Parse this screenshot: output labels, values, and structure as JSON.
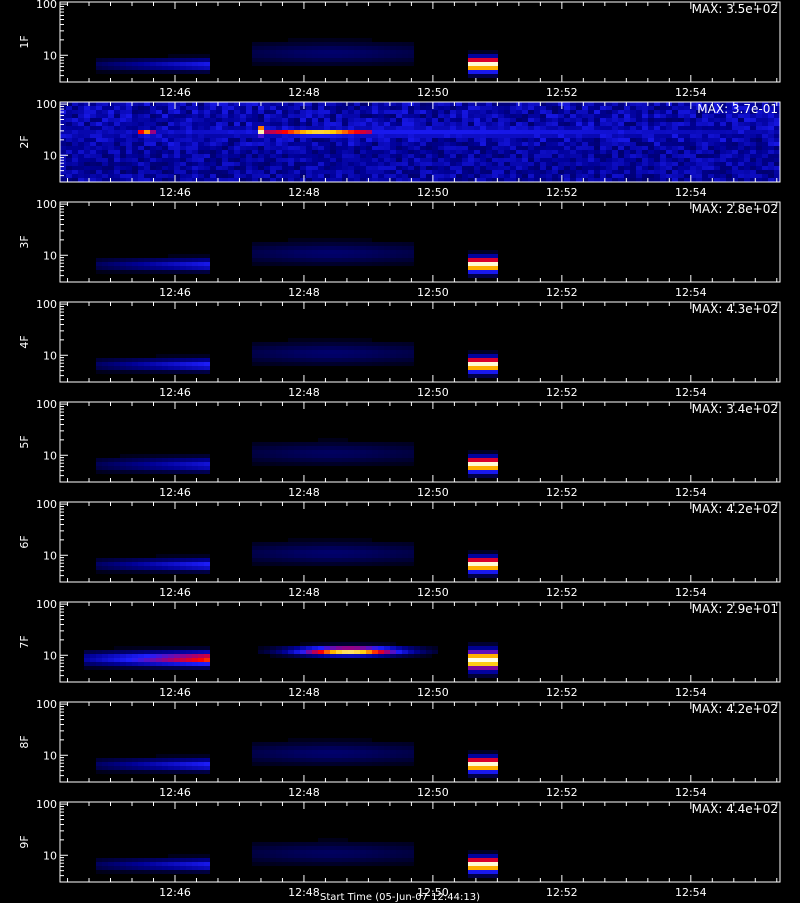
{
  "figure": {
    "x_axis_title": "Start Time (05-Jun-07 12:44:13)"
  },
  "chart_data": [
    {
      "type": "heatmap",
      "channel_label": "1F",
      "max_label": "MAX: 3.5e+02",
      "x_ticks": [
        "12:46",
        "12:48",
        "12:50",
        "12:52",
        "12:54"
      ],
      "x_range": [
        "12:44:13",
        "12:55:23"
      ],
      "y_ticks": [
        "10",
        "100"
      ],
      "y_scale": "log",
      "y_range": [
        3,
        110
      ],
      "blobs": [
        {
          "t_start": "12:44:45",
          "t_end": "12:46:33",
          "y_center": 6.5,
          "y_spread": 0.12,
          "intensity": 0.42,
          "ramp": "rise"
        },
        {
          "t_start": "12:47:10",
          "t_end": "12:49:40",
          "y_center": 11,
          "y_spread": 0.22,
          "intensity": 0.18,
          "ramp": "flat"
        },
        {
          "t_start": "12:50:35",
          "t_end": "12:50:58",
          "y_center": 6.5,
          "y_spread": 0.15,
          "intensity": 1.0,
          "ramp": "core"
        }
      ]
    },
    {
      "type": "heatmap",
      "channel_label": "2F",
      "max_label": "MAX: 3.7e-01",
      "x_ticks": [
        "12:46",
        "12:48",
        "12:50",
        "12:52",
        "12:54"
      ],
      "x_range": [
        "12:44:13",
        "12:55:23"
      ],
      "y_ticks": [
        "10",
        "100"
      ],
      "y_scale": "log",
      "y_range": [
        3,
        110
      ],
      "noise": true,
      "blobs": [
        {
          "t_start": "12:44:13",
          "t_end": "12:55:23",
          "y_center": 28,
          "y_spread": 0.16,
          "intensity": 0.42,
          "ramp": "flat"
        },
        {
          "t_start": "12:45:25",
          "t_end": "12:45:40",
          "y_center": 28,
          "y_spread": 0.08,
          "intensity": 0.85,
          "ramp": "flat"
        },
        {
          "t_start": "12:47:15",
          "t_end": "12:47:25",
          "y_center": 30,
          "y_spread": 0.12,
          "intensity": 1.0,
          "ramp": "flat"
        },
        {
          "t_start": "12:47:25",
          "t_end": "12:49:05",
          "y_center": 28,
          "y_spread": 0.08,
          "intensity": 0.9,
          "ramp": "flat"
        }
      ]
    },
    {
      "type": "heatmap",
      "channel_label": "3F",
      "max_label": "MAX: 2.8e+02",
      "x_ticks": [
        "12:46",
        "12:48",
        "12:50",
        "12:52",
        "12:54"
      ],
      "x_range": [
        "12:44:13",
        "12:55:23"
      ],
      "y_ticks": [
        "10",
        "100"
      ],
      "y_scale": "log",
      "y_range": [
        3,
        110
      ],
      "blobs": [
        {
          "t_start": "12:44:45",
          "t_end": "12:46:33",
          "y_center": 6.5,
          "y_spread": 0.12,
          "intensity": 0.42,
          "ramp": "rise"
        },
        {
          "t_start": "12:47:10",
          "t_end": "12:49:40",
          "y_center": 11,
          "y_spread": 0.22,
          "intensity": 0.18,
          "ramp": "flat"
        },
        {
          "t_start": "12:50:35",
          "t_end": "12:50:58",
          "y_center": 6.5,
          "y_spread": 0.15,
          "intensity": 1.0,
          "ramp": "core"
        }
      ]
    },
    {
      "type": "heatmap",
      "channel_label": "4F",
      "max_label": "MAX: 4.3e+02",
      "x_ticks": [
        "12:46",
        "12:48",
        "12:50",
        "12:52",
        "12:54"
      ],
      "x_range": [
        "12:44:13",
        "12:55:23"
      ],
      "y_ticks": [
        "10",
        "100"
      ],
      "y_scale": "log",
      "y_range": [
        3,
        110
      ],
      "blobs": [
        {
          "t_start": "12:44:45",
          "t_end": "12:46:33",
          "y_center": 6.5,
          "y_spread": 0.12,
          "intensity": 0.45,
          "ramp": "rise"
        },
        {
          "t_start": "12:47:10",
          "t_end": "12:49:40",
          "y_center": 11,
          "y_spread": 0.22,
          "intensity": 0.18,
          "ramp": "flat"
        },
        {
          "t_start": "12:50:35",
          "t_end": "12:50:58",
          "y_center": 6.5,
          "y_spread": 0.15,
          "intensity": 1.0,
          "ramp": "core"
        }
      ]
    },
    {
      "type": "heatmap",
      "channel_label": "5F",
      "max_label": "MAX: 3.4e+02",
      "x_ticks": [
        "12:46",
        "12:48",
        "12:50",
        "12:52",
        "12:54"
      ],
      "x_range": [
        "12:44:13",
        "12:55:23"
      ],
      "y_ticks": [
        "10",
        "100"
      ],
      "y_scale": "log",
      "y_range": [
        3,
        110
      ],
      "blobs": [
        {
          "t_start": "12:44:45",
          "t_end": "12:46:33",
          "y_center": 6.5,
          "y_spread": 0.14,
          "intensity": 0.38,
          "ramp": "rise"
        },
        {
          "t_start": "12:47:10",
          "t_end": "12:49:40",
          "y_center": 11,
          "y_spread": 0.22,
          "intensity": 0.16,
          "ramp": "flat"
        },
        {
          "t_start": "12:50:35",
          "t_end": "12:50:58",
          "y_center": 6.5,
          "y_spread": 0.15,
          "intensity": 1.0,
          "ramp": "core"
        }
      ]
    },
    {
      "type": "heatmap",
      "channel_label": "6F",
      "max_label": "MAX: 4.2e+02",
      "x_ticks": [
        "12:46",
        "12:48",
        "12:50",
        "12:52",
        "12:54"
      ],
      "x_range": [
        "12:44:13",
        "12:55:23"
      ],
      "y_ticks": [
        "10",
        "100"
      ],
      "y_scale": "log",
      "y_range": [
        3,
        110
      ],
      "blobs": [
        {
          "t_start": "12:44:45",
          "t_end": "12:46:33",
          "y_center": 6.5,
          "y_spread": 0.12,
          "intensity": 0.45,
          "ramp": "rise"
        },
        {
          "t_start": "12:47:10",
          "t_end": "12:49:40",
          "y_center": 11,
          "y_spread": 0.22,
          "intensity": 0.18,
          "ramp": "flat"
        },
        {
          "t_start": "12:50:35",
          "t_end": "12:50:58",
          "y_center": 6.5,
          "y_spread": 0.15,
          "intensity": 1.0,
          "ramp": "core"
        }
      ]
    },
    {
      "type": "heatmap",
      "channel_label": "7F",
      "max_label": "MAX: 2.9e+01",
      "x_ticks": [
        "12:46",
        "12:48",
        "12:50",
        "12:52",
        "12:54"
      ],
      "x_range": [
        "12:44:13",
        "12:55:23"
      ],
      "y_ticks": [
        "10",
        "100"
      ],
      "y_scale": "log",
      "y_range": [
        3,
        110
      ],
      "blobs": [
        {
          "t_start": "12:44:35",
          "t_end": "12:46:33",
          "y_center": 8.5,
          "y_spread": 0.14,
          "intensity": 0.78,
          "ramp": "rise"
        },
        {
          "t_start": "12:47:20",
          "t_end": "12:50:05",
          "y_center": 12,
          "y_spread": 0.09,
          "intensity": 0.95,
          "ramp": "center"
        },
        {
          "t_start": "12:50:35",
          "t_end": "12:50:58",
          "y_center": 8,
          "y_spread": 0.2,
          "intensity": 1.0,
          "ramp": "core"
        }
      ]
    },
    {
      "type": "heatmap",
      "channel_label": "8F",
      "max_label": "MAX: 4.2e+02",
      "x_ticks": [
        "12:46",
        "12:48",
        "12:50",
        "12:52",
        "12:54"
      ],
      "x_range": [
        "12:44:13",
        "12:55:23"
      ],
      "y_ticks": [
        "10",
        "100"
      ],
      "y_scale": "log",
      "y_range": [
        3,
        110
      ],
      "blobs": [
        {
          "t_start": "12:44:45",
          "t_end": "12:46:33",
          "y_center": 6.5,
          "y_spread": 0.12,
          "intensity": 0.45,
          "ramp": "rise"
        },
        {
          "t_start": "12:47:10",
          "t_end": "12:49:40",
          "y_center": 11,
          "y_spread": 0.22,
          "intensity": 0.18,
          "ramp": "flat"
        },
        {
          "t_start": "12:50:35",
          "t_end": "12:50:58",
          "y_center": 6.5,
          "y_spread": 0.15,
          "intensity": 1.0,
          "ramp": "core"
        }
      ]
    },
    {
      "type": "heatmap",
      "channel_label": "9F",
      "max_label": "MAX: 4.4e+02",
      "x_ticks": [
        "12:46",
        "12:48",
        "12:50",
        "12:52",
        "12:54"
      ],
      "x_range": [
        "12:44:13",
        "12:55:23"
      ],
      "y_ticks": [
        "10",
        "100"
      ],
      "y_scale": "log",
      "y_range": [
        3,
        110
      ],
      "blobs": [
        {
          "t_start": "12:44:45",
          "t_end": "12:46:33",
          "y_center": 6.5,
          "y_spread": 0.12,
          "intensity": 0.42,
          "ramp": "rise"
        },
        {
          "t_start": "12:47:10",
          "t_end": "12:49:40",
          "y_center": 11,
          "y_spread": 0.22,
          "intensity": 0.16,
          "ramp": "flat"
        },
        {
          "t_start": "12:50:35",
          "t_end": "12:50:58",
          "y_center": 6.5,
          "y_spread": 0.15,
          "intensity": 1.0,
          "ramp": "core"
        }
      ]
    }
  ]
}
